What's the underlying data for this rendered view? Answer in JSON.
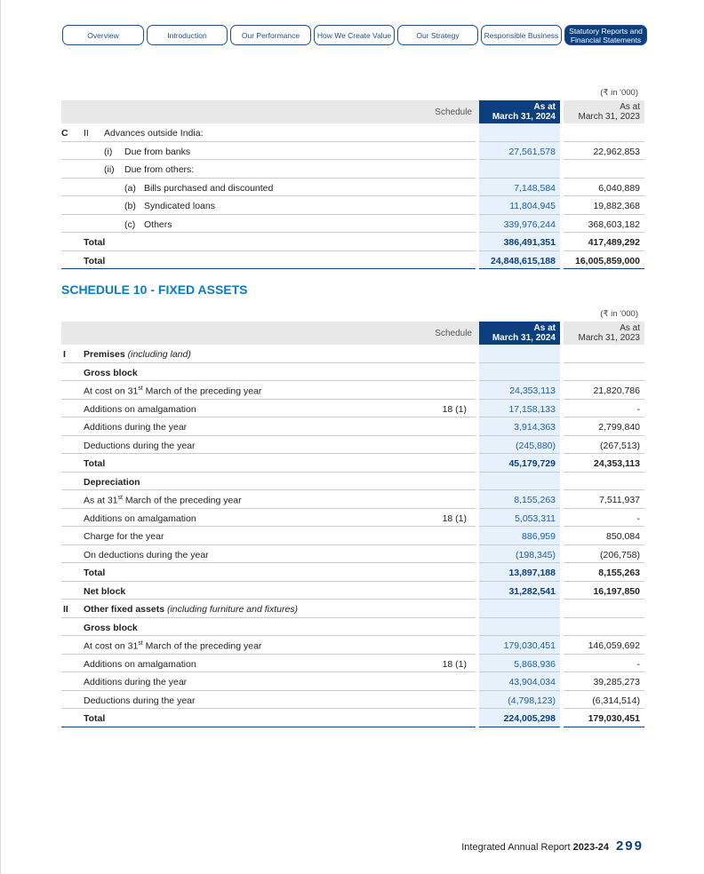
{
  "nav": [
    {
      "label": "Overview",
      "w": 92
    },
    {
      "label": "Introduction",
      "w": 92
    },
    {
      "label": "Our Performance",
      "w": 92
    },
    {
      "label": "How We Create Value",
      "w": 92
    },
    {
      "label": "Our Strategy",
      "w": 92
    },
    {
      "label": "Responsible Business",
      "w": 92,
      "w2": 1
    },
    {
      "label": "Statutory Reports and Financial Statements",
      "w": 92,
      "active": true
    }
  ],
  "unit": "(₹ in '000)",
  "header": {
    "schedule": "Schedule",
    "cur": "As at\nMarch 31, 2024",
    "prev": "As at\nMarch 31, 2023"
  },
  "table1": [
    {
      "m": [
        [
          "C",
          0,
          true
        ],
        [
          "II",
          25
        ]
      ],
      "label": "Advances outside India:",
      "lx": 48,
      "cur": "",
      "prev": ""
    },
    {
      "m": [
        [
          "(i)",
          48
        ]
      ],
      "label": "Due from banks",
      "lx": 71,
      "cur": "27,561,578",
      "prev": "22,962,853"
    },
    {
      "m": [
        [
          "(ii)",
          48
        ]
      ],
      "label": "Due from others:",
      "lx": 71,
      "cur": "",
      "prev": ""
    },
    {
      "m": [
        [
          "(a)",
          71
        ]
      ],
      "label": "Bills purchased and discounted",
      "lx": 93,
      "cur": "7,148,584",
      "prev": "6,040,889"
    },
    {
      "m": [
        [
          "(b)",
          71
        ]
      ],
      "label": "Syndicated loans",
      "lx": 93,
      "cur": "11,804,945",
      "prev": "19,882,368"
    },
    {
      "m": [
        [
          "(c)",
          71
        ]
      ],
      "label": "Others",
      "lx": 93,
      "cur": "339,976,244",
      "prev": "368,603,182"
    },
    {
      "label": "Total",
      "lx": 25,
      "bold": true,
      "cur": "386,491,351",
      "prev": "417,489,292"
    },
    {
      "label": "Total",
      "lx": 25,
      "bold": true,
      "cur": "24,848,615,188",
      "prev": "16,005,859,000",
      "last": true
    }
  ],
  "schedule_title": "SCHEDULE 10  - FIXED ASSETS",
  "table2": [
    {
      "m": [
        [
          "I",
          2,
          true
        ]
      ],
      "label": "Premises",
      "italic": " (including land)",
      "bold": true,
      "lx": 25,
      "cur": "",
      "prev": ""
    },
    {
      "label": "Gross block",
      "bold": true,
      "lx": 25,
      "cur": "",
      "prev": ""
    },
    {
      "label": "At cost on 31",
      "sup": "st",
      "label2": " March of the preceding year",
      "lx": 25,
      "cur": "24,353,113",
      "prev": "21,820,786"
    },
    {
      "label": "Additions on amalgamation",
      "schedule": "18 (1)",
      "lx": 25,
      "cur": "17,158,133",
      "prev": "-"
    },
    {
      "label": "Additions during the year",
      "lx": 25,
      "cur": "3,914,363",
      "prev": "2,799,840"
    },
    {
      "label": "Deductions during the year",
      "lx": 25,
      "cur": "(245,880)",
      "prev": "(267,513)"
    },
    {
      "label": "Total",
      "bold": true,
      "lx": 25,
      "cur": "45,179,729",
      "prev": "24,353,113"
    },
    {
      "label": "Depreciation",
      "bold": true,
      "lx": 25,
      "cur": "",
      "prev": ""
    },
    {
      "label": "As at 31",
      "sup": "st",
      "label2": " March of the preceding year",
      "lx": 25,
      "cur": "8,155,263",
      "prev": "7,511,937"
    },
    {
      "label": "Additions on amalgamation",
      "schedule": "18 (1)",
      "lx": 25,
      "cur": "5,053,311",
      "prev": "-"
    },
    {
      "label": "Charge for the year",
      "lx": 25,
      "cur": "886,959",
      "prev": "850,084"
    },
    {
      "label": "On deductions during the year",
      "lx": 25,
      "cur": "(198,345)",
      "prev": "(206,758)"
    },
    {
      "label": "Total",
      "bold": true,
      "lx": 25,
      "cur": "13,897,188",
      "prev": "8,155,263"
    },
    {
      "label": "Net block",
      "bold": true,
      "lx": 25,
      "cur": "31,282,541",
      "prev": "16,197,850"
    },
    {
      "m": [
        [
          "II",
          2,
          true
        ]
      ],
      "label": "Other fixed assets",
      "italic": " (including furniture and fixtures)",
      "bold": true,
      "lx": 25,
      "cur": "",
      "prev": ""
    },
    {
      "label": "Gross block",
      "bold": true,
      "lx": 25,
      "cur": "",
      "prev": ""
    },
    {
      "label": "At cost on 31",
      "sup": "st",
      "label2": " March of the preceding year",
      "lx": 25,
      "cur": "179,030,451",
      "prev": "146,059,692"
    },
    {
      "label": "Additions on amalgamation",
      "schedule": "18 (1)",
      "lx": 25,
      "cur": "5,868,936",
      "prev": "-"
    },
    {
      "label": "Additions during the year",
      "lx": 25,
      "cur": "43,904,034",
      "prev": "39,285,273"
    },
    {
      "label": "Deductions during the year",
      "lx": 25,
      "cur": "(4,798,123)",
      "prev": "(6,314,514)"
    },
    {
      "label": "Total",
      "bold": true,
      "lx": 25,
      "cur": "224,005,298",
      "prev": "179,030,451",
      "last": true
    }
  ],
  "footer": {
    "report": "Integrated Annual Report",
    "year": "2023-24",
    "page": "299"
  }
}
